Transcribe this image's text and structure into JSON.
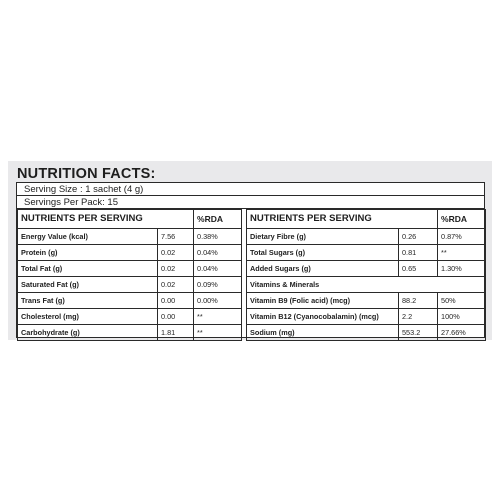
{
  "title": "NUTRITION FACTS:",
  "serving_size": "Serving Size : 1 sachet (4 g)",
  "servings_per_pack": "Servings Per Pack: 15",
  "left_table": {
    "header": [
      "NUTRIENTS PER SERVING",
      "%RDA"
    ],
    "rows": [
      {
        "name": "Energy Value (kcal)",
        "value": "7.56",
        "rda": "0.38%"
      },
      {
        "name": "Protein (g)",
        "value": "0.02",
        "rda": "0.04%"
      },
      {
        "name": "Total Fat (g)",
        "value": "0.02",
        "rda": "0.04%"
      },
      {
        "name": "Saturated Fat (g)",
        "value": "0.02",
        "rda": "0.09%"
      },
      {
        "name": "Trans Fat (g)",
        "value": "0.00",
        "rda": "0.00%"
      },
      {
        "name": "Cholesterol (mg)",
        "value": "0.00",
        "rda": "**"
      },
      {
        "name": "Carbohydrate (g)",
        "value": "1.81",
        "rda": "**"
      }
    ]
  },
  "right_table": {
    "header": [
      "NUTRIENTS PER SERVING",
      "%RDA"
    ],
    "rows": [
      {
        "name": "Dietary Fibre (g)",
        "value": "0.26",
        "rda": "0.87%"
      },
      {
        "name": "Total Sugars (g)",
        "value": "0.81",
        "rda": "**"
      },
      {
        "name": "Added Sugars (g)",
        "value": "0.65",
        "rda": "1.30%"
      },
      {
        "name": "Vitamins & Minerals",
        "value": "",
        "rda": ""
      },
      {
        "name": "Vitamin B9 (Folic acid) (mcg)",
        "value": "88.2",
        "rda": "50%"
      },
      {
        "name": "Vitamin B12 (Cyanocobalamin) (mcg)",
        "value": "2.2",
        "rda": "100%"
      },
      {
        "name": "Sodium (mg)",
        "value": "553.2",
        "rda": "27.66%"
      }
    ]
  }
}
